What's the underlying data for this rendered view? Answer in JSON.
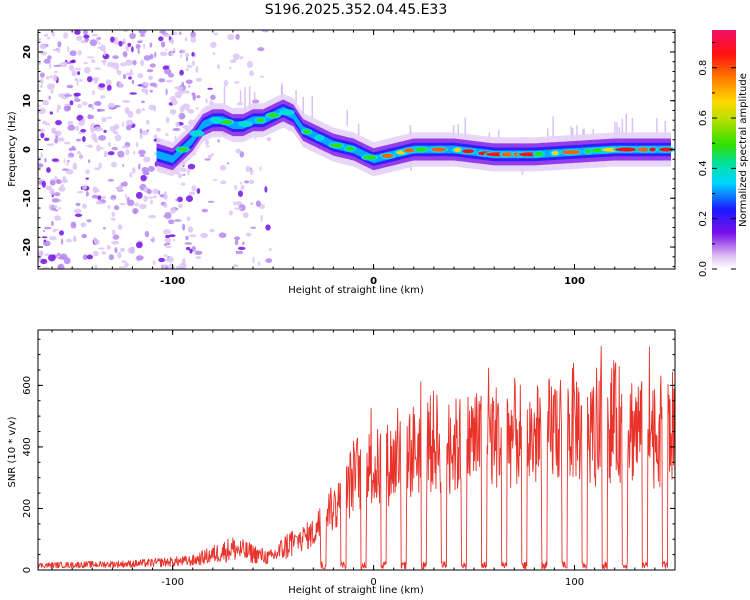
{
  "title": "S196.2025.352.04.45.E33",
  "colors": {
    "snr_line": "#e8322a",
    "axis": "#000000",
    "background": "#ffffff"
  },
  "chart_data": [
    {
      "type": "heatmap",
      "name": "spectrogram",
      "xlabel": "Height of straight line (km)",
      "ylabel": "Frequency (Hz)",
      "xlim": [
        -167,
        150
      ],
      "ylim": [
        -24.5,
        24.5
      ],
      "x_ticks": [
        -100,
        0,
        100
      ],
      "x_tick_labels": [
        "-100",
        "0",
        "100"
      ],
      "y_ticks": [
        -20,
        -10,
        0,
        10,
        20
      ],
      "y_tick_labels": [
        "-20",
        "-10",
        "0",
        "10",
        "20"
      ],
      "colorbar": {
        "label": "Normalized spectral amplitude",
        "range": [
          0.0,
          0.95
        ],
        "ticks": [
          0.0,
          0.2,
          0.4,
          0.6,
          0.8
        ],
        "tick_labels": [
          "0.0",
          "0.2",
          "0.4",
          "0.6",
          "0.8"
        ]
      },
      "ridge": {
        "x": [
          -108,
          -100,
          -95,
          -90,
          -85,
          -80,
          -75,
          -70,
          -65,
          -60,
          -55,
          -50,
          -45,
          -40,
          -35,
          -30,
          -25,
          -20,
          -10,
          0,
          10,
          20,
          40,
          60,
          80,
          100,
          120,
          140,
          148
        ],
        "y": [
          -1,
          -2,
          0,
          2,
          5,
          6,
          6,
          5,
          5,
          6,
          6,
          7,
          8,
          7,
          4,
          3,
          2,
          1,
          0,
          -2,
          -1,
          0,
          0,
          -1,
          -1,
          -0.5,
          0,
          0,
          0
        ]
      }
    },
    {
      "type": "line",
      "name": "snr",
      "xlabel": "Height of straight line (km)",
      "ylabel": "SNR (10 * v/v)",
      "xlim": [
        -167,
        150
      ],
      "ylim": [
        0,
        780
      ],
      "x_ticks": [
        -100,
        0,
        100
      ],
      "x_tick_labels": [
        "-100",
        "0",
        "100"
      ],
      "y_ticks": [
        0,
        200,
        400,
        600
      ],
      "y_tick_labels": [
        "0",
        "200",
        "400",
        "600"
      ],
      "envelope": {
        "x": [
          -167,
          -120,
          -90,
          -80,
          -70,
          -52,
          -50,
          -40,
          -30,
          -25,
          -15,
          -10,
          -5,
          0,
          10,
          20,
          30,
          40,
          50,
          60,
          70,
          80,
          90,
          100,
          110,
          120,
          130,
          140,
          150
        ],
        "y": [
          15,
          20,
          30,
          50,
          70,
          40,
          45,
          95,
          130,
          180,
          250,
          330,
          360,
          350,
          380,
          420,
          450,
          430,
          460,
          470,
          480,
          460,
          500,
          520,
          470,
          520,
          500,
          480,
          500
        ]
      },
      "dropouts_x": [
        -25,
        -15,
        -5,
        5,
        15,
        25,
        35,
        45,
        55,
        65,
        75,
        85,
        95,
        105,
        115,
        125,
        135,
        145
      ]
    }
  ]
}
